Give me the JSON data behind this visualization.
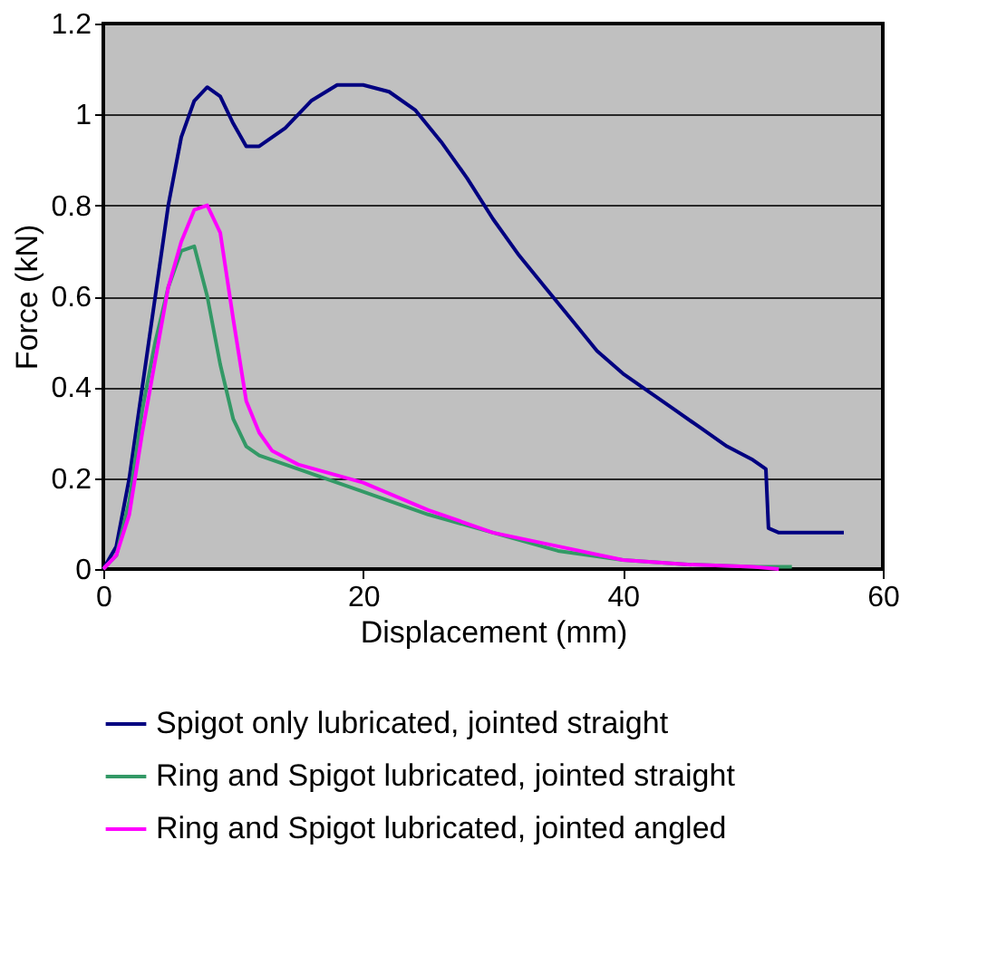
{
  "chart_data": {
    "type": "line",
    "xlabel": "Displacement (mm)",
    "ylabel": "Force (kN)",
    "xlim": [
      0,
      60
    ],
    "xticks": [
      0,
      20,
      40,
      60
    ],
    "ylim": [
      0,
      1.2
    ],
    "yticks": [
      0,
      0.2,
      0.4,
      0.6,
      0.8,
      1,
      1.2
    ],
    "grid": "y",
    "legend": "bottom",
    "marker": "none",
    "line_style": "solid",
    "series": [
      {
        "name": "Spigot only lubricated, jointed straight",
        "color": "#000080",
        "x": [
          0,
          1,
          2,
          3,
          4,
          5,
          6,
          7,
          8,
          9,
          10,
          11,
          12,
          14,
          16,
          18,
          20,
          22,
          24,
          26,
          28,
          30,
          32,
          34,
          36,
          38,
          40,
          42,
          44,
          46,
          48,
          50,
          51,
          51.2,
          52,
          54,
          57
        ],
        "values": [
          0,
          0.05,
          0.2,
          0.4,
          0.6,
          0.8,
          0.95,
          1.03,
          1.06,
          1.04,
          0.98,
          0.93,
          0.93,
          0.97,
          1.03,
          1.065,
          1.065,
          1.05,
          1.01,
          0.94,
          0.86,
          0.77,
          0.69,
          0.62,
          0.55,
          0.48,
          0.43,
          0.39,
          0.35,
          0.31,
          0.27,
          0.24,
          0.22,
          0.09,
          0.08,
          0.08,
          0.08
        ]
      },
      {
        "name": "Ring and Spigot lubricated, jointed straight",
        "color": "#339966",
        "x": [
          0,
          1,
          2,
          3,
          4,
          5,
          6,
          7,
          8,
          9,
          10,
          11,
          12,
          15,
          20,
          25,
          30,
          35,
          40,
          45,
          50,
          53
        ],
        "values": [
          0,
          0.03,
          0.15,
          0.35,
          0.5,
          0.62,
          0.7,
          0.71,
          0.6,
          0.45,
          0.33,
          0.27,
          0.25,
          0.22,
          0.17,
          0.12,
          0.08,
          0.04,
          0.02,
          0.01,
          0.005,
          0.005
        ]
      },
      {
        "name": "Ring and Spigot lubricated, jointed angled",
        "color": "#ff00ff",
        "x": [
          0,
          1,
          2,
          3,
          4,
          5,
          6,
          7,
          8,
          9,
          10,
          11,
          12,
          13,
          15,
          20,
          25,
          30,
          35,
          40,
          45,
          50,
          52
        ],
        "values": [
          0,
          0.03,
          0.12,
          0.3,
          0.46,
          0.62,
          0.72,
          0.79,
          0.8,
          0.74,
          0.55,
          0.37,
          0.3,
          0.26,
          0.23,
          0.19,
          0.13,
          0.08,
          0.05,
          0.02,
          0.01,
          0.005,
          0
        ]
      }
    ]
  }
}
